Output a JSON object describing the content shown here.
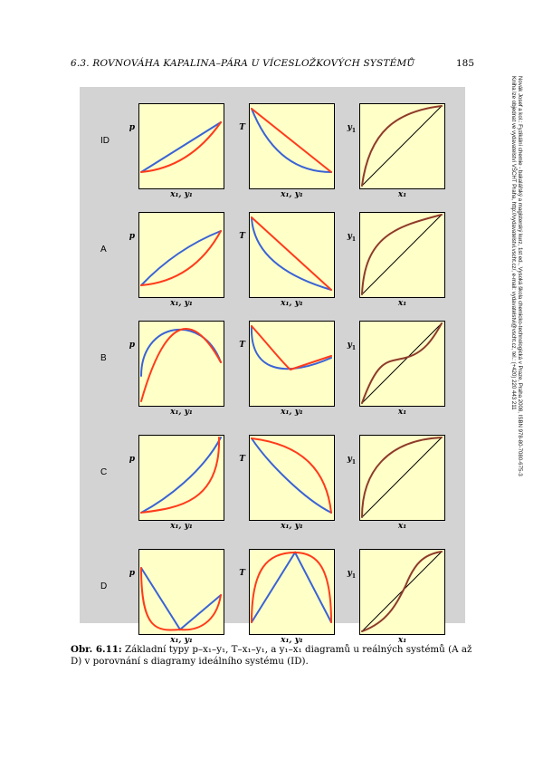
{
  "header": {
    "chapter": "6.3.  ROVNOVÁHA KAPALINA–PÁRA U VÍCESLOŽKOVÝCH SYSTÉMŮ",
    "page_number": "185"
  },
  "colors": {
    "plot_bg": "#ffffc8",
    "panel_bg": "#d3d3d3",
    "red": "#ff3b1b",
    "blue": "#3a63d6",
    "brown": "#8f3b2a",
    "black": "#000000"
  },
  "figure": {
    "rows": [
      {
        "label": "ID"
      },
      {
        "label": "A"
      },
      {
        "label": "B"
      },
      {
        "label": "C"
      },
      {
        "label": "D"
      }
    ],
    "columns": [
      {
        "ylabel": "p",
        "ysub": "",
        "xlabel": "x₁, y₁"
      },
      {
        "ylabel": "T",
        "ysub": "",
        "xlabel": "x₁, y₁"
      },
      {
        "ylabel": "y",
        "ysub": "1",
        "xlabel": "x₁"
      }
    ]
  },
  "caption": {
    "number": "Obr. 6.11:",
    "text": " Základní typy p–x₁–y₁, T–x₁–y₁, a y₁–x₁ diagramů u reálných systémů (A až D) v porovnání s diagramy ideálního systému (ID)."
  },
  "sidebar": {
    "line1": "Novák Josef a kol.: Fyzikální chemie - bakalářský a magisterský kurz, 1st ed., Vysoká škola chemicko-technologická v Praze, Praha 2008, ISBN 978-80-7080-675-3",
    "line2": "Kniha lze objednat ve vydavatelství VŠCHT Praha, http://vydavatelstvi.vscht.cz/, e-mail: vydavatelstvi@vscht.cz, tel.: (+420) 220 443 211"
  }
}
